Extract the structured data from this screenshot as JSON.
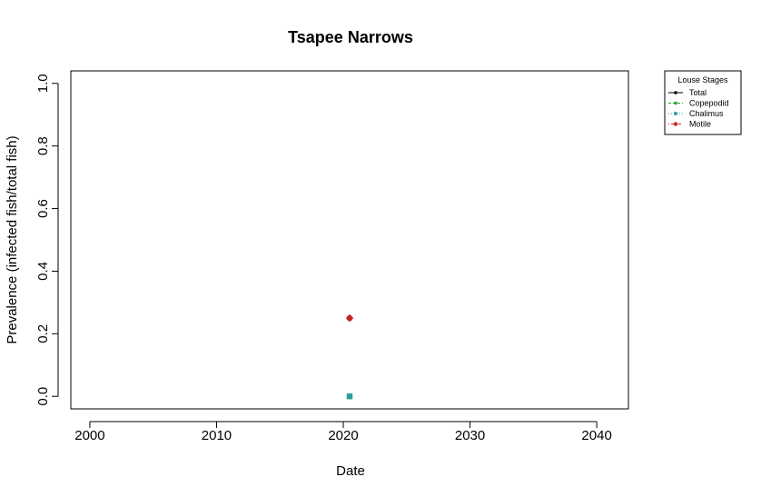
{
  "chart_data": {
    "type": "scatter",
    "title": "Tsapee Narrows",
    "xlabel": "Date",
    "ylabel": "Prevalence (infected fish/total fish)",
    "xlim": [
      1998.5,
      2042.5
    ],
    "ylim": [
      -0.04,
      1.04
    ],
    "x_ticks": [
      2000,
      2010,
      2020,
      2030,
      2040
    ],
    "y_ticks": [
      0.0,
      0.2,
      0.4,
      0.6,
      0.8,
      1.0
    ],
    "x_tick_labels": [
      "2000",
      "2010",
      "2020",
      "2030",
      "2040"
    ],
    "y_tick_labels": [
      "0.0",
      "0.2",
      "0.4",
      "0.6",
      "0.8",
      "1.0"
    ],
    "grid": false,
    "legend": {
      "title": "Louse Stages",
      "position": "outside-top-right",
      "entries": [
        "Total",
        "Copepodid",
        "Chalimus",
        "Motile"
      ]
    },
    "series": [
      {
        "name": "Total",
        "color": "#000000",
        "line": "solid",
        "marker": "circle",
        "points": [
          [
            2020.5,
            0.25
          ]
        ]
      },
      {
        "name": "Copepodid",
        "color": "#22aa22",
        "line": "dashed",
        "marker": "circle",
        "points": [
          [
            2020.5,
            0.0
          ]
        ]
      },
      {
        "name": "Chalimus",
        "color": "#2a9d9d",
        "line": "dotted",
        "marker": "square",
        "points": [
          [
            2020.5,
            0.0
          ]
        ]
      },
      {
        "name": "Motile",
        "color": "#cc2222",
        "line": "dotdash",
        "marker": "diamond",
        "points": [
          [
            2020.5,
            0.25
          ]
        ]
      }
    ]
  }
}
